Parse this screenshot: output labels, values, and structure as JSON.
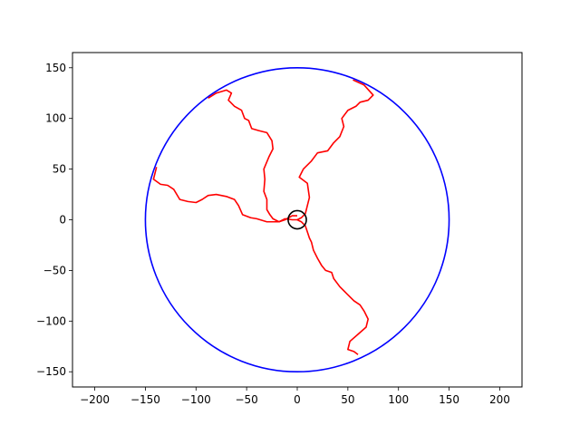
{
  "chart_data": {
    "type": "line",
    "title": "",
    "xlabel": "",
    "ylabel": "",
    "xlim": [
      -222,
      222
    ],
    "ylim": [
      -165,
      165
    ],
    "grid": false,
    "legend": "none",
    "x_ticks": [
      -200,
      -150,
      -100,
      -50,
      0,
      50,
      100,
      150,
      200
    ],
    "x_tick_labels": [
      "−200",
      "−150",
      "−100",
      "−50",
      "0",
      "50",
      "100",
      "150",
      "200"
    ],
    "y_ticks": [
      -150,
      -100,
      -50,
      0,
      50,
      100,
      150
    ],
    "y_tick_labels": [
      "−150",
      "−100",
      "−50",
      "0",
      "50",
      "100",
      "150"
    ],
    "outer_circle": {
      "cx": 0,
      "cy": 0,
      "r": 150,
      "color": "#0000ff"
    },
    "inner_circle": {
      "cx": 0,
      "cy": 0,
      "r": 9,
      "color": "#000000"
    },
    "path_color": "#ff0000",
    "paths": [
      {
        "points": [
          [
            -88,
            120
          ],
          [
            -80,
            125
          ],
          [
            -70,
            128
          ],
          [
            -65,
            125
          ],
          [
            -68,
            118
          ],
          [
            -62,
            112
          ],
          [
            -55,
            108
          ],
          [
            -52,
            100
          ],
          [
            -48,
            98
          ],
          [
            -45,
            90
          ],
          [
            -38,
            88
          ],
          [
            -30,
            86
          ],
          [
            -25,
            78
          ],
          [
            -24,
            70
          ],
          [
            -28,
            62
          ],
          [
            -33,
            50
          ],
          [
            -32,
            40
          ],
          [
            -33,
            28
          ],
          [
            -30,
            20
          ],
          [
            -30,
            10
          ],
          [
            -27,
            5
          ],
          [
            -24,
            1
          ],
          [
            -18,
            -2
          ],
          [
            -12,
            0
          ],
          [
            -5,
            4
          ],
          [
            0,
            4
          ]
        ]
      },
      {
        "points": [
          [
            -139,
            52
          ],
          [
            -142,
            40
          ],
          [
            -135,
            35
          ],
          [
            -128,
            34
          ],
          [
            -122,
            30
          ],
          [
            -116,
            20
          ],
          [
            -108,
            18
          ],
          [
            -100,
            17
          ],
          [
            -94,
            20
          ],
          [
            -88,
            24
          ],
          [
            -80,
            25
          ],
          [
            -70,
            23
          ],
          [
            -62,
            20
          ],
          [
            -58,
            14
          ],
          [
            -54,
            5
          ],
          [
            -46,
            2
          ],
          [
            -40,
            1
          ],
          [
            -30,
            -2
          ],
          [
            -24,
            -2
          ],
          [
            -18,
            -2
          ],
          [
            -12,
            1
          ],
          [
            -5,
            0
          ],
          [
            0,
            0
          ]
        ]
      },
      {
        "points": [
          [
            55,
            138
          ],
          [
            66,
            133
          ],
          [
            75,
            123
          ],
          [
            70,
            118
          ],
          [
            62,
            116
          ],
          [
            58,
            112
          ],
          [
            50,
            108
          ],
          [
            44,
            100
          ],
          [
            46,
            92
          ],
          [
            42,
            82
          ],
          [
            36,
            76
          ],
          [
            30,
            68
          ],
          [
            20,
            66
          ],
          [
            14,
            58
          ],
          [
            6,
            50
          ],
          [
            2,
            42
          ],
          [
            10,
            36
          ],
          [
            12,
            22
          ],
          [
            10,
            14
          ],
          [
            8,
            6
          ],
          [
            4,
            2
          ],
          [
            0,
            0
          ]
        ]
      },
      {
        "points": [
          [
            60,
            -133
          ],
          [
            56,
            -130
          ],
          [
            50,
            -128
          ],
          [
            52,
            -120
          ],
          [
            60,
            -113
          ],
          [
            68,
            -106
          ],
          [
            70,
            -98
          ],
          [
            66,
            -90
          ],
          [
            62,
            -84
          ],
          [
            56,
            -80
          ],
          [
            48,
            -72
          ],
          [
            42,
            -66
          ],
          [
            36,
            -58
          ],
          [
            34,
            -52
          ],
          [
            28,
            -50
          ],
          [
            24,
            -45
          ],
          [
            20,
            -38
          ],
          [
            16,
            -30
          ],
          [
            14,
            -22
          ],
          [
            12,
            -18
          ],
          [
            10,
            -12
          ],
          [
            8,
            -6
          ],
          [
            4,
            -2
          ],
          [
            0,
            0
          ]
        ]
      }
    ]
  }
}
